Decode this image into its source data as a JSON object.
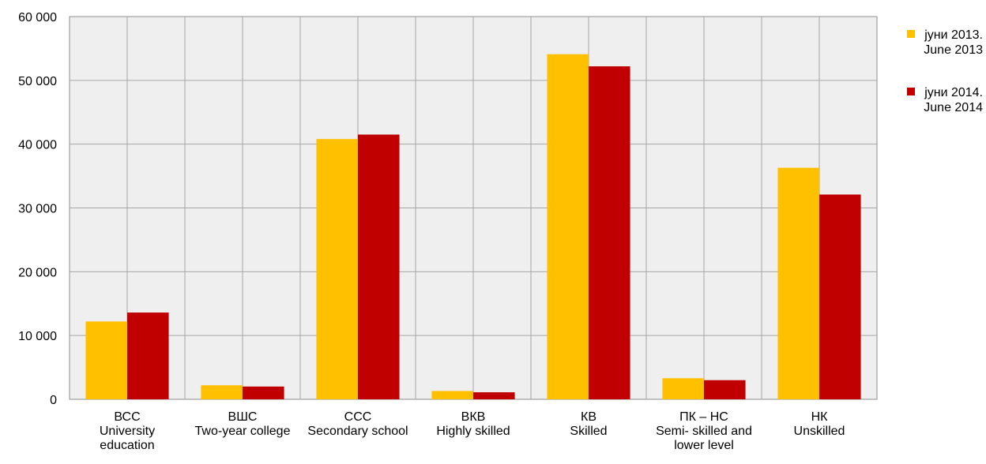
{
  "chart_data": {
    "type": "bar",
    "categories": [
      [
        "ВСС",
        "University",
        "education"
      ],
      [
        "ВШС",
        "Two-year college"
      ],
      [
        "ССС",
        "Secondary school"
      ],
      [
        "ВКВ",
        "Highly skilled"
      ],
      [
        "КВ",
        "Skilled"
      ],
      [
        "ПК – НС",
        "Semi- skilled and",
        "lower level"
      ],
      [
        "НК",
        "Unskilled"
      ]
    ],
    "series": [
      {
        "name": [
          "јуни 2013.",
          "June 2013"
        ],
        "color": "#FFC000",
        "values": [
          12200,
          2200,
          40800,
          1300,
          54100,
          3300,
          36300
        ]
      },
      {
        "name": [
          "јуни 2014.",
          "June 2014"
        ],
        "color": "#C00000",
        "values": [
          13600,
          2000,
          41500,
          1100,
          52200,
          3000,
          32100
        ]
      }
    ],
    "yticks": [
      "0",
      "10 000",
      "20 000",
      "30 000",
      "40 000",
      "50 000",
      "60 000"
    ],
    "ylim": [
      0,
      60000
    ],
    "grid": true,
    "legend_position": "right",
    "plot_background": "#EFEFEF"
  }
}
